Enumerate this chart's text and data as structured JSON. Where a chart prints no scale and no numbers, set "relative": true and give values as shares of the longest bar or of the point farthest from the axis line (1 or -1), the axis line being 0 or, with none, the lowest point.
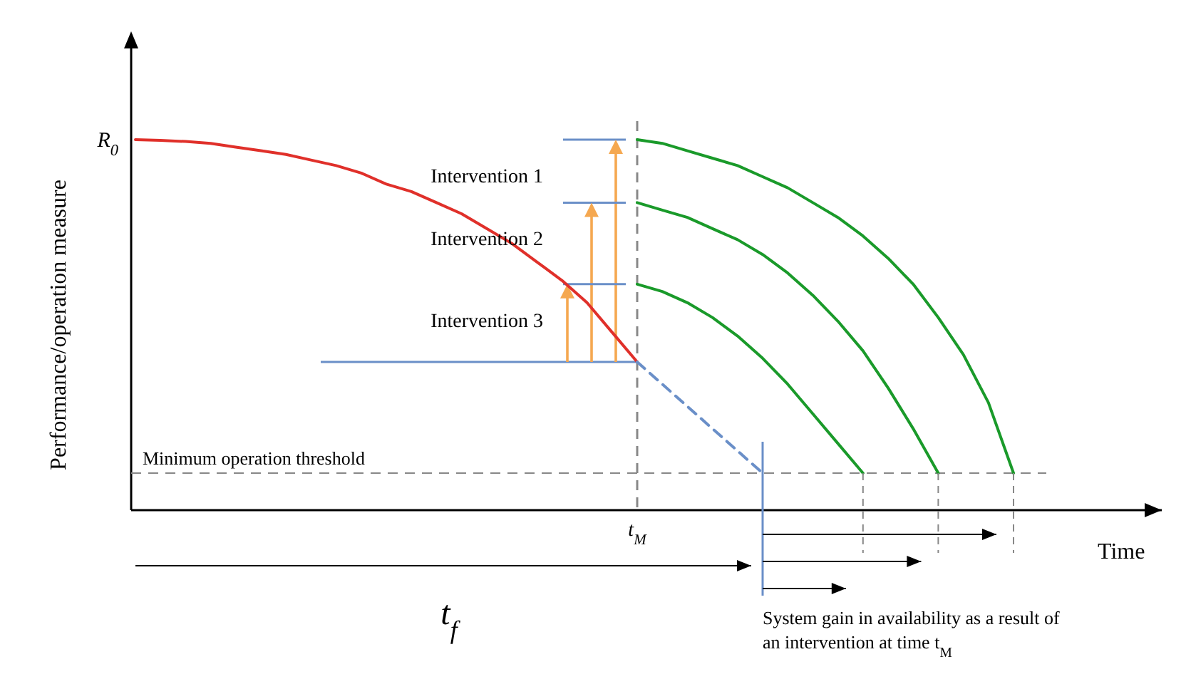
{
  "chart_data": {
    "type": "line",
    "relative": true,
    "xlabel": "Time",
    "ylabel": "Performance/operation measure",
    "categories": [
      null,
      null,
      null,
      null,
      null,
      null,
      null,
      null,
      null,
      null,
      null,
      null,
      null,
      null,
      null,
      null,
      null,
      null,
      null,
      null,
      null,
      null,
      null,
      null,
      null,
      null,
      null,
      null,
      null,
      null,
      null,
      null,
      null,
      null,
      null,
      null,
      null,
      null,
      null,
      null,
      null
    ],
    "series": [
      {
        "color": "#e0302a",
        "values": [
          1,
          0.998,
          0.995,
          0.99,
          0.98,
          0.97,
          0.96,
          0.945,
          0.93,
          0.91,
          0.88,
          0.86,
          0.83,
          0.8,
          0.76,
          0.72,
          0.67,
          0.62,
          0.56,
          0.48,
          0.4,
          null,
          null,
          null,
          null,
          null,
          null,
          null,
          null,
          null,
          null,
          null,
          null,
          null,
          null,
          null,
          null,
          null,
          null,
          null,
          null
        ]
      },
      {
        "color": "#6a8fc8",
        "line_style": "dashed",
        "values": [
          null,
          null,
          null,
          null,
          null,
          null,
          null,
          null,
          null,
          null,
          null,
          null,
          null,
          null,
          null,
          null,
          null,
          null,
          null,
          null,
          0.4,
          0.34,
          0.28,
          0.22,
          0.16,
          0.1,
          null,
          null,
          null,
          null,
          null,
          null,
          null,
          null,
          null,
          null,
          null,
          null,
          null,
          null,
          null
        ]
      },
      {
        "color": "#1a9a2a",
        "values": [
          null,
          null,
          null,
          null,
          null,
          null,
          null,
          null,
          null,
          null,
          null,
          null,
          null,
          null,
          null,
          null,
          null,
          null,
          null,
          null,
          1,
          0.99,
          0.97,
          0.95,
          0.93,
          0.9,
          0.87,
          0.83,
          0.79,
          0.74,
          0.68,
          0.61,
          0.52,
          0.42,
          0.29,
          0.1,
          null,
          null,
          null,
          null,
          null
        ]
      },
      {
        "color": "#1a9a2a",
        "values": [
          null,
          null,
          null,
          null,
          null,
          null,
          null,
          null,
          null,
          null,
          null,
          null,
          null,
          null,
          null,
          null,
          null,
          null,
          null,
          null,
          0.83,
          0.81,
          0.79,
          0.76,
          0.73,
          0.69,
          0.64,
          0.58,
          0.51,
          0.43,
          0.33,
          0.22,
          0.1,
          null,
          null,
          null,
          null,
          null,
          null,
          null,
          null
        ]
      },
      {
        "color": "#1a9a2a",
        "values": [
          null,
          null,
          null,
          null,
          null,
          null,
          null,
          null,
          null,
          null,
          null,
          null,
          null,
          null,
          null,
          null,
          null,
          null,
          null,
          null,
          0.61,
          0.59,
          0.56,
          0.52,
          0.47,
          0.41,
          0.34,
          0.26,
          0.18,
          0.1,
          null,
          null,
          null,
          null,
          null,
          null,
          null,
          null,
          null,
          null,
          null
        ]
      }
    ],
    "ref_lines": [
      {
        "axis": "y",
        "value": 0.1,
        "label": "Minimum operation threshold",
        "color": "#888888",
        "line_style": "dashed"
      }
    ],
    "annotations": [
      "Intervention 1",
      "Intervention 2",
      "Intervention 3",
      "R$_{0}$",
      "t$_{M}$",
      "t$_{f}$",
      "System gain in availability as a result of an intervention at time t$_{M}$"
    ]
  }
}
